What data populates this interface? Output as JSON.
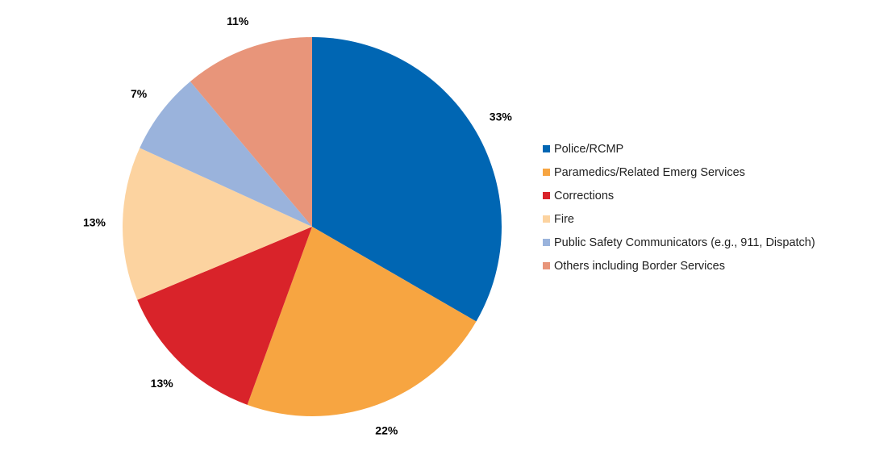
{
  "chart_data": {
    "type": "pie",
    "title": "",
    "start_angle_deg": 0,
    "direction": "clockwise",
    "legend_position": "right",
    "slices": [
      {
        "label": "Police/RCMP",
        "value": 33,
        "value_label": "33%",
        "color": "#0066B3"
      },
      {
        "label": "Paramedics/Related Emerg Services",
        "value": 22,
        "value_label": "22%",
        "color": "#F7A541"
      },
      {
        "label": "Corrections",
        "value": 13,
        "value_label": "13%",
        "color": "#D9232A"
      },
      {
        "label": "Fire",
        "value": 13,
        "value_label": "13%",
        "color": "#FCD3A0"
      },
      {
        "label": "Public Safety Communicators (e.g., 911, Dispatch)",
        "value": 7,
        "value_label": "7%",
        "color": "#9AB3DC"
      },
      {
        "label": "Others including Border Services",
        "value": 11,
        "value_label": "11%",
        "color": "#E8957A"
      }
    ]
  }
}
